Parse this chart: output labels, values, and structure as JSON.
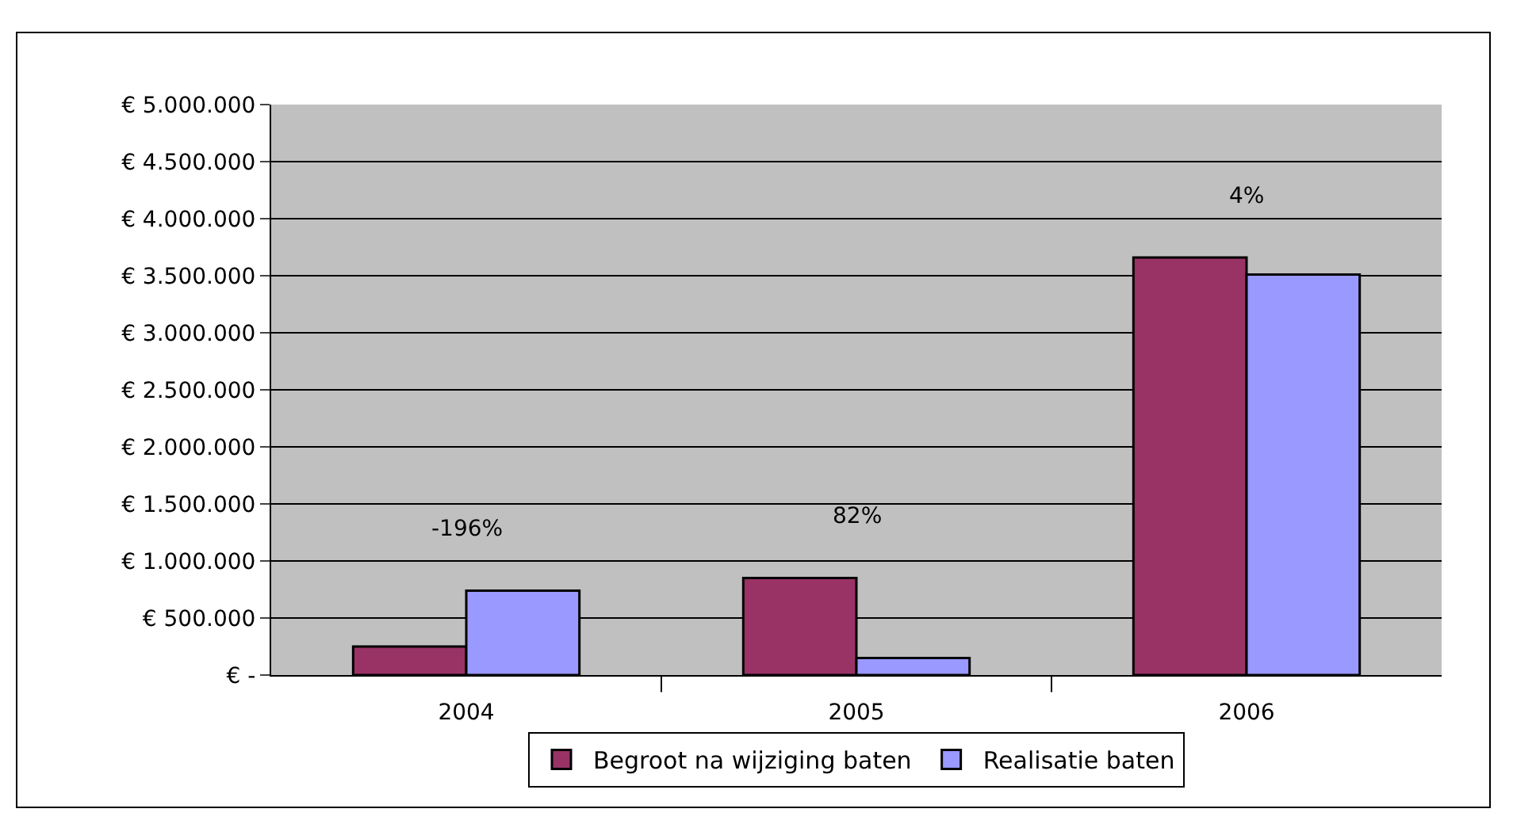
{
  "chart_data": {
    "type": "bar",
    "categories": [
      "2004",
      "2005",
      "2006"
    ],
    "series": [
      {
        "name": "Begroot na wijziging baten",
        "color": "#993366",
        "values": [
          250000,
          850000,
          3660000
        ]
      },
      {
        "name": "Realisatie baten",
        "color": "#9999ff",
        "values": [
          740000,
          150000,
          3510000
        ]
      }
    ],
    "ylim": [
      0,
      5000000
    ],
    "yticks": [
      {
        "value": 0,
        "label": "€ -"
      },
      {
        "value": 500000,
        "label": "€ 500.000"
      },
      {
        "value": 1000000,
        "label": "€ 1.000.000"
      },
      {
        "value": 1500000,
        "label": "€ 1.500.000"
      },
      {
        "value": 2000000,
        "label": "€ 2.000.000"
      },
      {
        "value": 2500000,
        "label": "€ 2.500.000"
      },
      {
        "value": 3000000,
        "label": "€ 3.000.000"
      },
      {
        "value": 3500000,
        "label": "€ 3.500.000"
      },
      {
        "value": 4000000,
        "label": "€ 4.000.000"
      },
      {
        "value": 4500000,
        "label": "€ 4.500.000"
      },
      {
        "value": 5000000,
        "label": "€ 5.000.000"
      }
    ],
    "grid": "y",
    "legend": "bottom",
    "annotations": [
      "-196%",
      "82%",
      "4%"
    ]
  }
}
